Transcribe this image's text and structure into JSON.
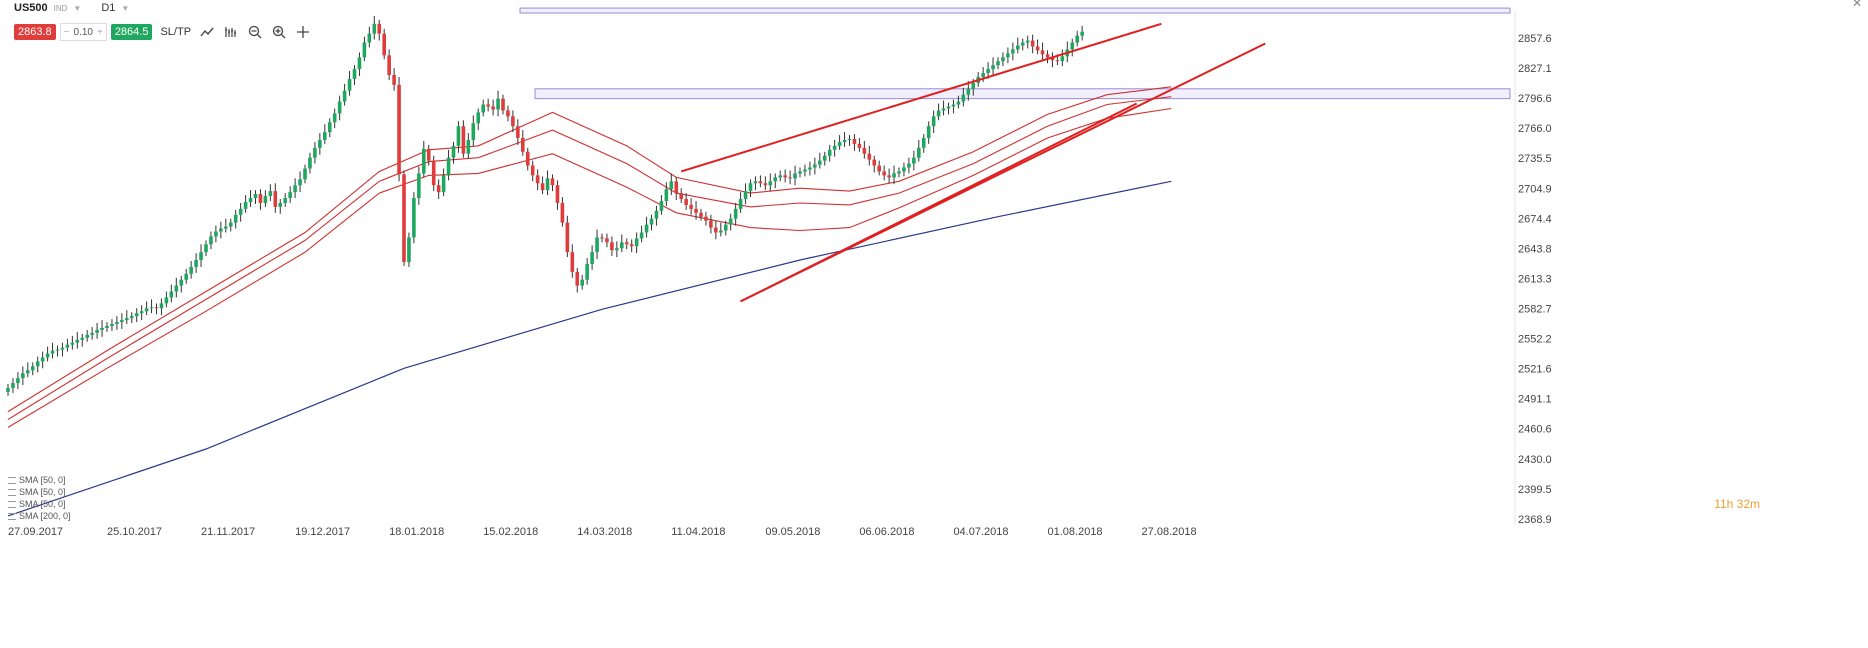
{
  "toolbar": {
    "symbol": "US500",
    "class_tag": "IND",
    "timeframe": "D1",
    "sell_price": "2863.8",
    "spread": "0.10",
    "spread_minus": "−",
    "spread_plus": "+",
    "buy_price": "2864.5",
    "sltp_label": "SL/TP",
    "tools": [
      "line-chart-icon",
      "bar-chart-icon",
      "zoom-out-icon",
      "zoom-in-icon",
      "crosshair-icon"
    ]
  },
  "window": {
    "close_glyph": "✕"
  },
  "indicators": [
    "SMA [50, 0]",
    "SMA [50, 0]",
    "SMA [50, 0]",
    "SMA [200, 0]"
  ],
  "timer": "11h 32m",
  "colors": {
    "up": "#1fa760",
    "down": "#e03c3c",
    "ma": "#d03030",
    "sma200": "#2b3a8c",
    "zone": "#9b8ad6",
    "trend": "#e02020"
  },
  "chart_data": {
    "type": "candlestick",
    "symbol": "US500",
    "timeframe": "D1",
    "y_ticks": [
      2857.6,
      2827.1,
      2796.6,
      2766.0,
      2735.5,
      2704.9,
      2674.4,
      2643.8,
      2613.3,
      2582.7,
      2552.2,
      2521.6,
      2491.1,
      2460.6,
      2430.0,
      2399.5,
      2368.9
    ],
    "ylim": [
      2368.9,
      2888.0
    ],
    "x_labels": [
      {
        "label": "27.09.2017",
        "bar": 0
      },
      {
        "label": "25.10.2017",
        "bar": 20
      },
      {
        "label": "21.11.2017",
        "bar": 39
      },
      {
        "label": "19.12.2017",
        "bar": 58
      },
      {
        "label": "18.01.2018",
        "bar": 77
      },
      {
        "label": "15.02.2018",
        "bar": 96
      },
      {
        "label": "14.03.2018",
        "bar": 115
      },
      {
        "label": "11.04.2018",
        "bar": 134
      },
      {
        "label": "09.05.2018",
        "bar": 153
      },
      {
        "label": "06.06.2018",
        "bar": 172
      },
      {
        "label": "04.07.2018",
        "bar": 191
      },
      {
        "label": "01.08.2018",
        "bar": 210
      },
      {
        "label": "27.08.2018",
        "bar": 229
      }
    ],
    "candles_close": [
      2502,
      2507,
      2512,
      2517,
      2520,
      2524,
      2529,
      2533,
      2537,
      2540,
      2541,
      2543,
      2546,
      2548,
      2551,
      2553,
      2556,
      2558,
      2561,
      2563,
      2565,
      2567,
      2569,
      2571,
      2573,
      2575,
      2578,
      2580,
      2583,
      2584,
      2583,
      2588,
      2594,
      2600,
      2606,
      2612,
      2618,
      2625,
      2632,
      2640,
      2648,
      2656,
      2661,
      2664,
      2666,
      2670,
      2678,
      2684,
      2691,
      2695,
      2699,
      2690,
      2697,
      2702,
      2686,
      2690,
      2695,
      2701,
      2708,
      2714,
      2725,
      2736,
      2746,
      2754,
      2762,
      2772,
      2781,
      2793,
      2804,
      2816,
      2826,
      2838,
      2853,
      2862,
      2872,
      2862,
      2840,
      2820,
      2810,
      2719,
      2630,
      2655,
      2695,
      2720,
      2745,
      2733,
      2708,
      2701,
      2718,
      2736,
      2748,
      2768,
      2740,
      2754,
      2771,
      2782,
      2790,
      2788,
      2785,
      2796,
      2784,
      2778,
      2768,
      2756,
      2742,
      2728,
      2718,
      2710,
      2703,
      2715,
      2708,
      2690,
      2670,
      2640,
      2620,
      2606,
      2612,
      2628,
      2640,
      2655,
      2654,
      2650,
      2642,
      2644,
      2650,
      2648,
      2646,
      2654,
      2660,
      2668,
      2674,
      2682,
      2692,
      2704,
      2712,
      2700,
      2694,
      2688,
      2684,
      2680,
      2676,
      2672,
      2665,
      2660,
      2662,
      2668,
      2674,
      2684,
      2694,
      2702,
      2710,
      2712,
      2710,
      2708,
      2712,
      2716,
      2718,
      2716,
      2715,
      2720,
      2722,
      2724,
      2726,
      2729,
      2733,
      2738,
      2744,
      2748,
      2752,
      2754,
      2755,
      2750,
      2746,
      2740,
      2734,
      2728,
      2722,
      2718,
      2716,
      2720,
      2722,
      2726,
      2730,
      2736,
      2746,
      2756,
      2768,
      2778,
      2784,
      2786,
      2788,
      2790,
      2793,
      2800,
      2806,
      2812,
      2818,
      2822,
      2826,
      2830,
      2834,
      2838,
      2842,
      2846,
      2850,
      2853,
      2855,
      2849,
      2845,
      2841,
      2838,
      2835,
      2834,
      2839,
      2846,
      2853,
      2860,
      2864
    ],
    "candles_noise_note": "",
    "sma200": [
      [
        0,
        2372
      ],
      [
        40,
        2440
      ],
      [
        80,
        2522
      ],
      [
        120,
        2582
      ],
      [
        160,
        2632
      ],
      [
        200,
        2676
      ],
      [
        235,
        2712
      ]
    ],
    "ma_bands": [
      {
        "name": "",
        "points": [
          [
            0,
            2478
          ],
          [
            20,
            2540
          ],
          [
            40,
            2600
          ],
          [
            60,
            2660
          ],
          [
            75,
            2722
          ],
          [
            85,
            2744
          ],
          [
            95,
            2748
          ],
          [
            110,
            2782
          ],
          [
            125,
            2748
          ],
          [
            135,
            2716
          ],
          [
            150,
            2700
          ],
          [
            160,
            2705
          ],
          [
            170,
            2702
          ],
          [
            180,
            2712
          ],
          [
            195,
            2742
          ],
          [
            210,
            2780
          ],
          [
            222,
            2800
          ],
          [
            235,
            2808
          ]
        ]
      },
      {
        "name": "",
        "points": [
          [
            0,
            2470
          ],
          [
            20,
            2532
          ],
          [
            40,
            2592
          ],
          [
            60,
            2652
          ],
          [
            75,
            2712
          ],
          [
            85,
            2732
          ],
          [
            95,
            2736
          ],
          [
            110,
            2764
          ],
          [
            125,
            2730
          ],
          [
            135,
            2700
          ],
          [
            150,
            2686
          ],
          [
            160,
            2690
          ],
          [
            170,
            2688
          ],
          [
            180,
            2700
          ],
          [
            195,
            2730
          ],
          [
            210,
            2768
          ],
          [
            222,
            2790
          ],
          [
            235,
            2798
          ]
        ]
      },
      {
        "name": "",
        "points": [
          [
            0,
            2462
          ],
          [
            20,
            2522
          ],
          [
            40,
            2580
          ],
          [
            60,
            2640
          ],
          [
            75,
            2700
          ],
          [
            85,
            2718
          ],
          [
            95,
            2720
          ],
          [
            110,
            2740
          ],
          [
            125,
            2706
          ],
          [
            135,
            2680
          ],
          [
            150,
            2665
          ],
          [
            160,
            2662
          ],
          [
            170,
            2665
          ],
          [
            180,
            2685
          ],
          [
            195,
            2718
          ],
          [
            210,
            2756
          ],
          [
            222,
            2776
          ],
          [
            235,
            2786
          ]
        ]
      }
    ],
    "resistance_zones": [
      [
        2888,
        2883
      ],
      [
        2806,
        2796
      ]
    ],
    "trendlines": [
      {
        "from": [
          136,
          2722
        ],
        "to": [
          233,
          2872
        ]
      },
      {
        "from": [
          148,
          2590
        ],
        "to": [
          228,
          2791
        ]
      },
      {
        "from": [
          148,
          2590
        ],
        "to": [
          254,
          2852
        ]
      }
    ],
    "grid": false,
    "legend": "bottom-left"
  }
}
